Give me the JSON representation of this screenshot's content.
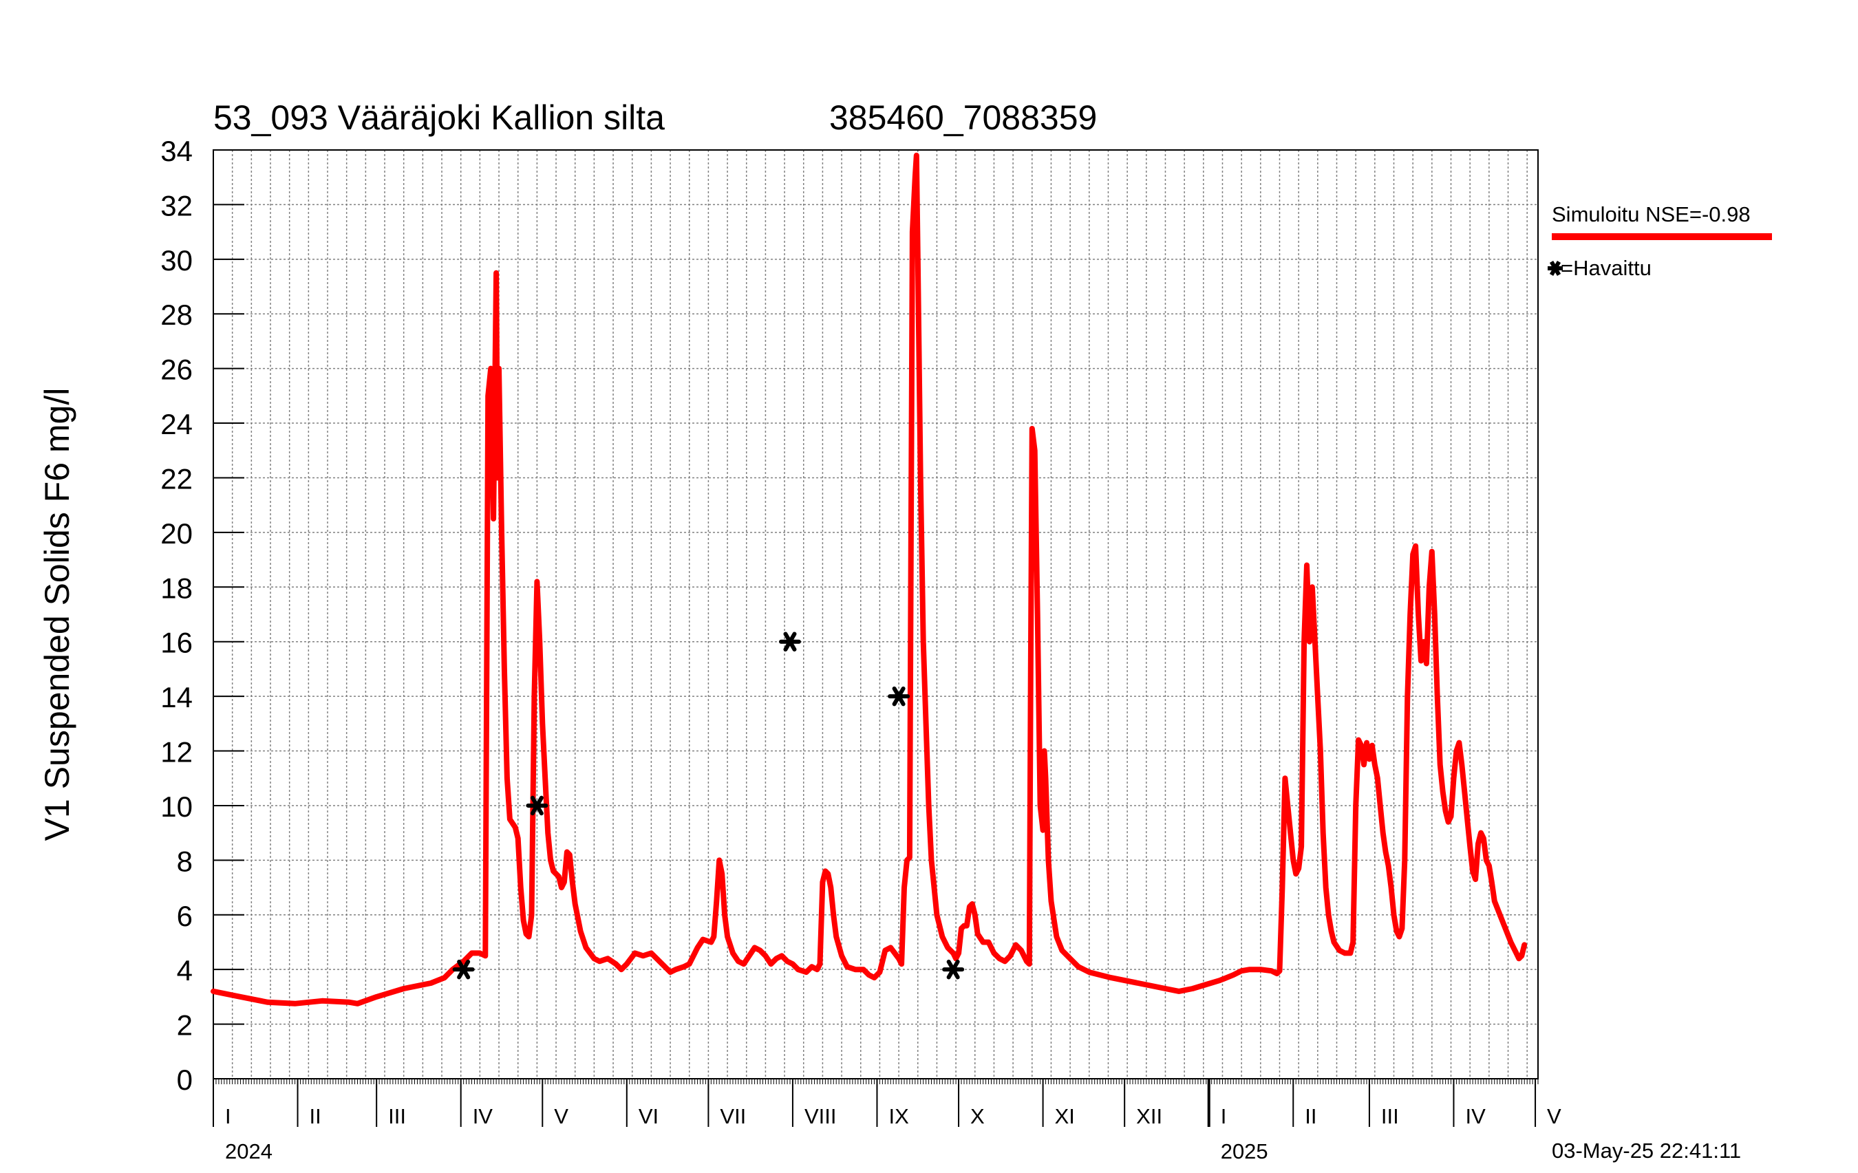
{
  "chart_data": {
    "type": "line",
    "title": "53_093 Vääräjoki Kallion silta",
    "station_code": "385460_7088359",
    "ylabel": "V1 Suspended Solids F6 mg/l",
    "xlabel": "",
    "ylim": [
      0,
      34
    ],
    "y_ticks": [
      "0",
      "2",
      "4",
      "6",
      "8",
      "10",
      "12",
      "14",
      "16",
      "18",
      "20",
      "22",
      "24",
      "26",
      "28",
      "30",
      "32",
      "34"
    ],
    "x_range_days": [
      0,
      487
    ],
    "month_labels": [
      "I",
      "II",
      "III",
      "IV",
      "V",
      "VI",
      "VII",
      "VIII",
      "IX",
      "X",
      "XI",
      "XII",
      "I",
      "II",
      "III",
      "IV",
      "V"
    ],
    "month_start_days": [
      0,
      31,
      60,
      91,
      121,
      152,
      182,
      213,
      244,
      274,
      305,
      335,
      366,
      397,
      425,
      456,
      486
    ],
    "year_labels": [
      "2024",
      "2025"
    ],
    "year_start_days": [
      0,
      366
    ],
    "grid": true,
    "legend_position": "right",
    "timestamp": "03-May-25 22:41:11",
    "colors": {
      "simulated": "#ff0000",
      "observed": "#000000",
      "grid": "#808080"
    },
    "series": [
      {
        "name": "Simuloitu NSE=-0.98",
        "kind": "line",
        "points": [
          [
            0,
            3.2
          ],
          [
            10,
            3.0
          ],
          [
            20,
            2.8
          ],
          [
            30,
            2.75
          ],
          [
            40,
            2.85
          ],
          [
            50,
            2.8
          ],
          [
            53,
            2.75
          ],
          [
            60,
            3.0
          ],
          [
            70,
            3.3
          ],
          [
            80,
            3.5
          ],
          [
            85,
            3.7
          ],
          [
            88,
            4.0
          ],
          [
            92,
            4.3
          ],
          [
            95,
            4.6
          ],
          [
            98,
            4.6
          ],
          [
            100,
            4.5
          ],
          [
            100.5,
            15
          ],
          [
            101,
            25
          ],
          [
            102,
            26
          ],
          [
            102.5,
            23
          ],
          [
            103,
            20.5
          ],
          [
            104,
            29.5
          ],
          [
            104.5,
            22
          ],
          [
            105,
            26
          ],
          [
            106,
            20
          ],
          [
            107,
            15
          ],
          [
            108,
            11
          ],
          [
            109,
            9.5
          ],
          [
            111,
            9.2
          ],
          [
            112,
            8.8
          ],
          [
            113,
            7
          ],
          [
            114,
            5.8
          ],
          [
            115,
            5.3
          ],
          [
            116,
            5.2
          ],
          [
            117,
            6
          ],
          [
            118,
            14
          ],
          [
            119,
            18.2
          ],
          [
            120,
            16
          ],
          [
            121,
            13
          ],
          [
            122,
            11
          ],
          [
            123,
            9
          ],
          [
            124,
            8
          ],
          [
            125,
            7.6
          ],
          [
            127,
            7.4
          ],
          [
            128,
            7.0
          ],
          [
            129,
            7.2
          ],
          [
            130,
            8.3
          ],
          [
            131,
            8.2
          ],
          [
            132,
            7.2
          ],
          [
            133,
            6.4
          ],
          [
            135,
            5.4
          ],
          [
            137,
            4.8
          ],
          [
            140,
            4.4
          ],
          [
            142,
            4.3
          ],
          [
            145,
            4.4
          ],
          [
            148,
            4.2
          ],
          [
            150,
            4.0
          ],
          [
            152,
            4.2
          ],
          [
            155,
            4.6
          ],
          [
            158,
            4.5
          ],
          [
            161,
            4.6
          ],
          [
            165,
            4.2
          ],
          [
            168,
            3.9
          ],
          [
            170,
            4.0
          ],
          [
            173,
            4.1
          ],
          [
            175,
            4.2
          ],
          [
            177,
            4.6
          ],
          [
            178,
            4.8
          ],
          [
            180,
            5.1
          ],
          [
            183,
            5.0
          ],
          [
            184,
            5.2
          ],
          [
            185,
            6.5
          ],
          [
            186,
            8.0
          ],
          [
            187,
            7.5
          ],
          [
            188,
            6.0
          ],
          [
            189,
            5.2
          ],
          [
            191,
            4.6
          ],
          [
            193,
            4.3
          ],
          [
            195,
            4.2
          ],
          [
            197,
            4.5
          ],
          [
            199,
            4.8
          ],
          [
            201,
            4.7
          ],
          [
            203,
            4.5
          ],
          [
            205,
            4.2
          ],
          [
            207,
            4.4
          ],
          [
            209,
            4.5
          ],
          [
            211,
            4.3
          ],
          [
            213,
            4.2
          ],
          [
            215,
            4.0
          ],
          [
            218,
            3.9
          ],
          [
            220,
            4.1
          ],
          [
            222,
            4.0
          ],
          [
            223,
            4.2
          ],
          [
            224,
            7.2
          ],
          [
            225,
            7.6
          ],
          [
            226,
            7.5
          ],
          [
            227,
            7.0
          ],
          [
            228,
            6.0
          ],
          [
            229,
            5.2
          ],
          [
            231,
            4.5
          ],
          [
            233,
            4.1
          ],
          [
            236,
            4.0
          ],
          [
            239,
            4.0
          ],
          [
            241,
            3.8
          ],
          [
            243,
            3.7
          ],
          [
            245,
            3.9
          ],
          [
            246,
            4.3
          ],
          [
            247,
            4.7
          ],
          [
            249,
            4.8
          ],
          [
            252,
            4.4
          ],
          [
            253,
            4.2
          ],
          [
            254,
            7.0
          ],
          [
            255,
            8.0
          ],
          [
            256,
            8.1
          ],
          [
            256.5,
            20
          ],
          [
            257,
            31
          ],
          [
            258,
            33
          ],
          [
            258.5,
            33.8
          ],
          [
            259,
            30
          ],
          [
            260,
            22
          ],
          [
            261,
            16
          ],
          [
            262,
            13
          ],
          [
            263,
            10
          ],
          [
            264,
            8
          ],
          [
            265,
            7
          ],
          [
            266,
            6
          ],
          [
            268,
            5.2
          ],
          [
            270,
            4.8
          ],
          [
            272,
            4.6
          ],
          [
            273,
            4.4
          ],
          [
            274,
            4.6
          ],
          [
            275,
            5.5
          ],
          [
            276,
            5.6
          ],
          [
            277,
            5.6
          ],
          [
            278,
            6.3
          ],
          [
            279,
            6.4
          ],
          [
            280,
            6.0
          ],
          [
            281,
            5.3
          ],
          [
            283,
            5.0
          ],
          [
            285,
            5.0
          ],
          [
            287,
            4.6
          ],
          [
            289,
            4.4
          ],
          [
            291,
            4.3
          ],
          [
            293,
            4.5
          ],
          [
            295,
            4.9
          ],
          [
            297,
            4.7
          ],
          [
            299,
            4.3
          ],
          [
            300,
            4.2
          ],
          [
            300.5,
            15
          ],
          [
            301,
            23.8
          ],
          [
            302,
            23
          ],
          [
            303,
            17
          ],
          [
            304,
            10
          ],
          [
            305,
            9.1
          ],
          [
            305.5,
            12
          ],
          [
            306,
            11
          ],
          [
            307,
            8
          ],
          [
            308,
            6.5
          ],
          [
            310,
            5.2
          ],
          [
            312,
            4.7
          ],
          [
            315,
            4.4
          ],
          [
            318,
            4.1
          ],
          [
            322,
            3.9
          ],
          [
            330,
            3.7
          ],
          [
            340,
            3.5
          ],
          [
            345,
            3.4
          ],
          [
            350,
            3.3
          ],
          [
            355,
            3.2
          ],
          [
            360,
            3.3
          ],
          [
            365,
            3.45
          ],
          [
            370,
            3.6
          ],
          [
            375,
            3.8
          ],
          [
            378,
            3.95
          ],
          [
            381,
            4.0
          ],
          [
            385,
            4.0
          ],
          [
            389,
            3.95
          ],
          [
            391,
            3.85
          ],
          [
            392,
            3.95
          ],
          [
            393,
            7
          ],
          [
            394,
            11
          ],
          [
            395,
            10
          ],
          [
            396,
            9
          ],
          [
            397,
            8
          ],
          [
            398,
            7.5
          ],
          [
            399,
            7.7
          ],
          [
            400,
            8.5
          ],
          [
            401,
            16
          ],
          [
            402,
            18.8
          ],
          [
            403,
            16
          ],
          [
            404,
            18
          ],
          [
            405,
            16
          ],
          [
            406,
            14
          ],
          [
            407,
            12
          ],
          [
            408,
            9
          ],
          [
            409,
            7
          ],
          [
            410,
            6
          ],
          [
            411,
            5.4
          ],
          [
            412,
            5.0
          ],
          [
            414,
            4.7
          ],
          [
            416,
            4.6
          ],
          [
            418,
            4.6
          ],
          [
            419,
            5.0
          ],
          [
            420,
            10
          ],
          [
            421,
            12.4
          ],
          [
            422,
            12.2
          ],
          [
            423,
            11.5
          ],
          [
            424,
            12.3
          ],
          [
            425,
            11.7
          ],
          [
            426,
            12.2
          ],
          [
            427,
            11.5
          ],
          [
            428,
            11
          ],
          [
            429,
            10
          ],
          [
            430,
            9
          ],
          [
            431,
            8.3
          ],
          [
            432,
            7.8
          ],
          [
            433,
            7
          ],
          [
            434,
            6
          ],
          [
            435,
            5.4
          ],
          [
            436,
            5.2
          ],
          [
            437,
            5.5
          ],
          [
            438,
            8
          ],
          [
            439,
            14
          ],
          [
            440,
            17
          ],
          [
            441,
            19.2
          ],
          [
            442,
            19.5
          ],
          [
            443,
            17
          ],
          [
            444,
            15.3
          ],
          [
            445,
            16
          ],
          [
            446,
            15.2
          ],
          [
            447,
            18
          ],
          [
            448,
            19.3
          ],
          [
            449,
            17
          ],
          [
            450,
            14
          ],
          [
            451,
            11.5
          ],
          [
            452,
            10.5
          ],
          [
            453,
            9.8
          ],
          [
            454,
            9.4
          ],
          [
            455,
            9.6
          ],
          [
            456,
            11
          ],
          [
            457,
            12
          ],
          [
            458,
            12.3
          ],
          [
            459,
            11.5
          ],
          [
            460,
            10.5
          ],
          [
            461,
            9.5
          ],
          [
            462,
            8.5
          ],
          [
            463,
            7.6
          ],
          [
            464,
            7.3
          ],
          [
            465,
            8.6
          ],
          [
            466,
            9
          ],
          [
            467,
            8.8
          ],
          [
            468,
            8
          ],
          [
            469,
            7.8
          ],
          [
            470,
            7.2
          ],
          [
            471,
            6.5
          ],
          [
            473,
            6
          ],
          [
            475,
            5.5
          ],
          [
            477,
            5.0
          ],
          [
            479,
            4.6
          ],
          [
            480,
            4.4
          ],
          [
            481,
            4.5
          ],
          [
            482,
            4.9
          ]
        ]
      },
      {
        "name": "=Havaittu",
        "kind": "markers",
        "points": [
          [
            92,
            4.0
          ],
          [
            119,
            10.0
          ],
          [
            212,
            16.0
          ],
          [
            252,
            14.0
          ],
          [
            272,
            4.0
          ]
        ]
      }
    ]
  }
}
